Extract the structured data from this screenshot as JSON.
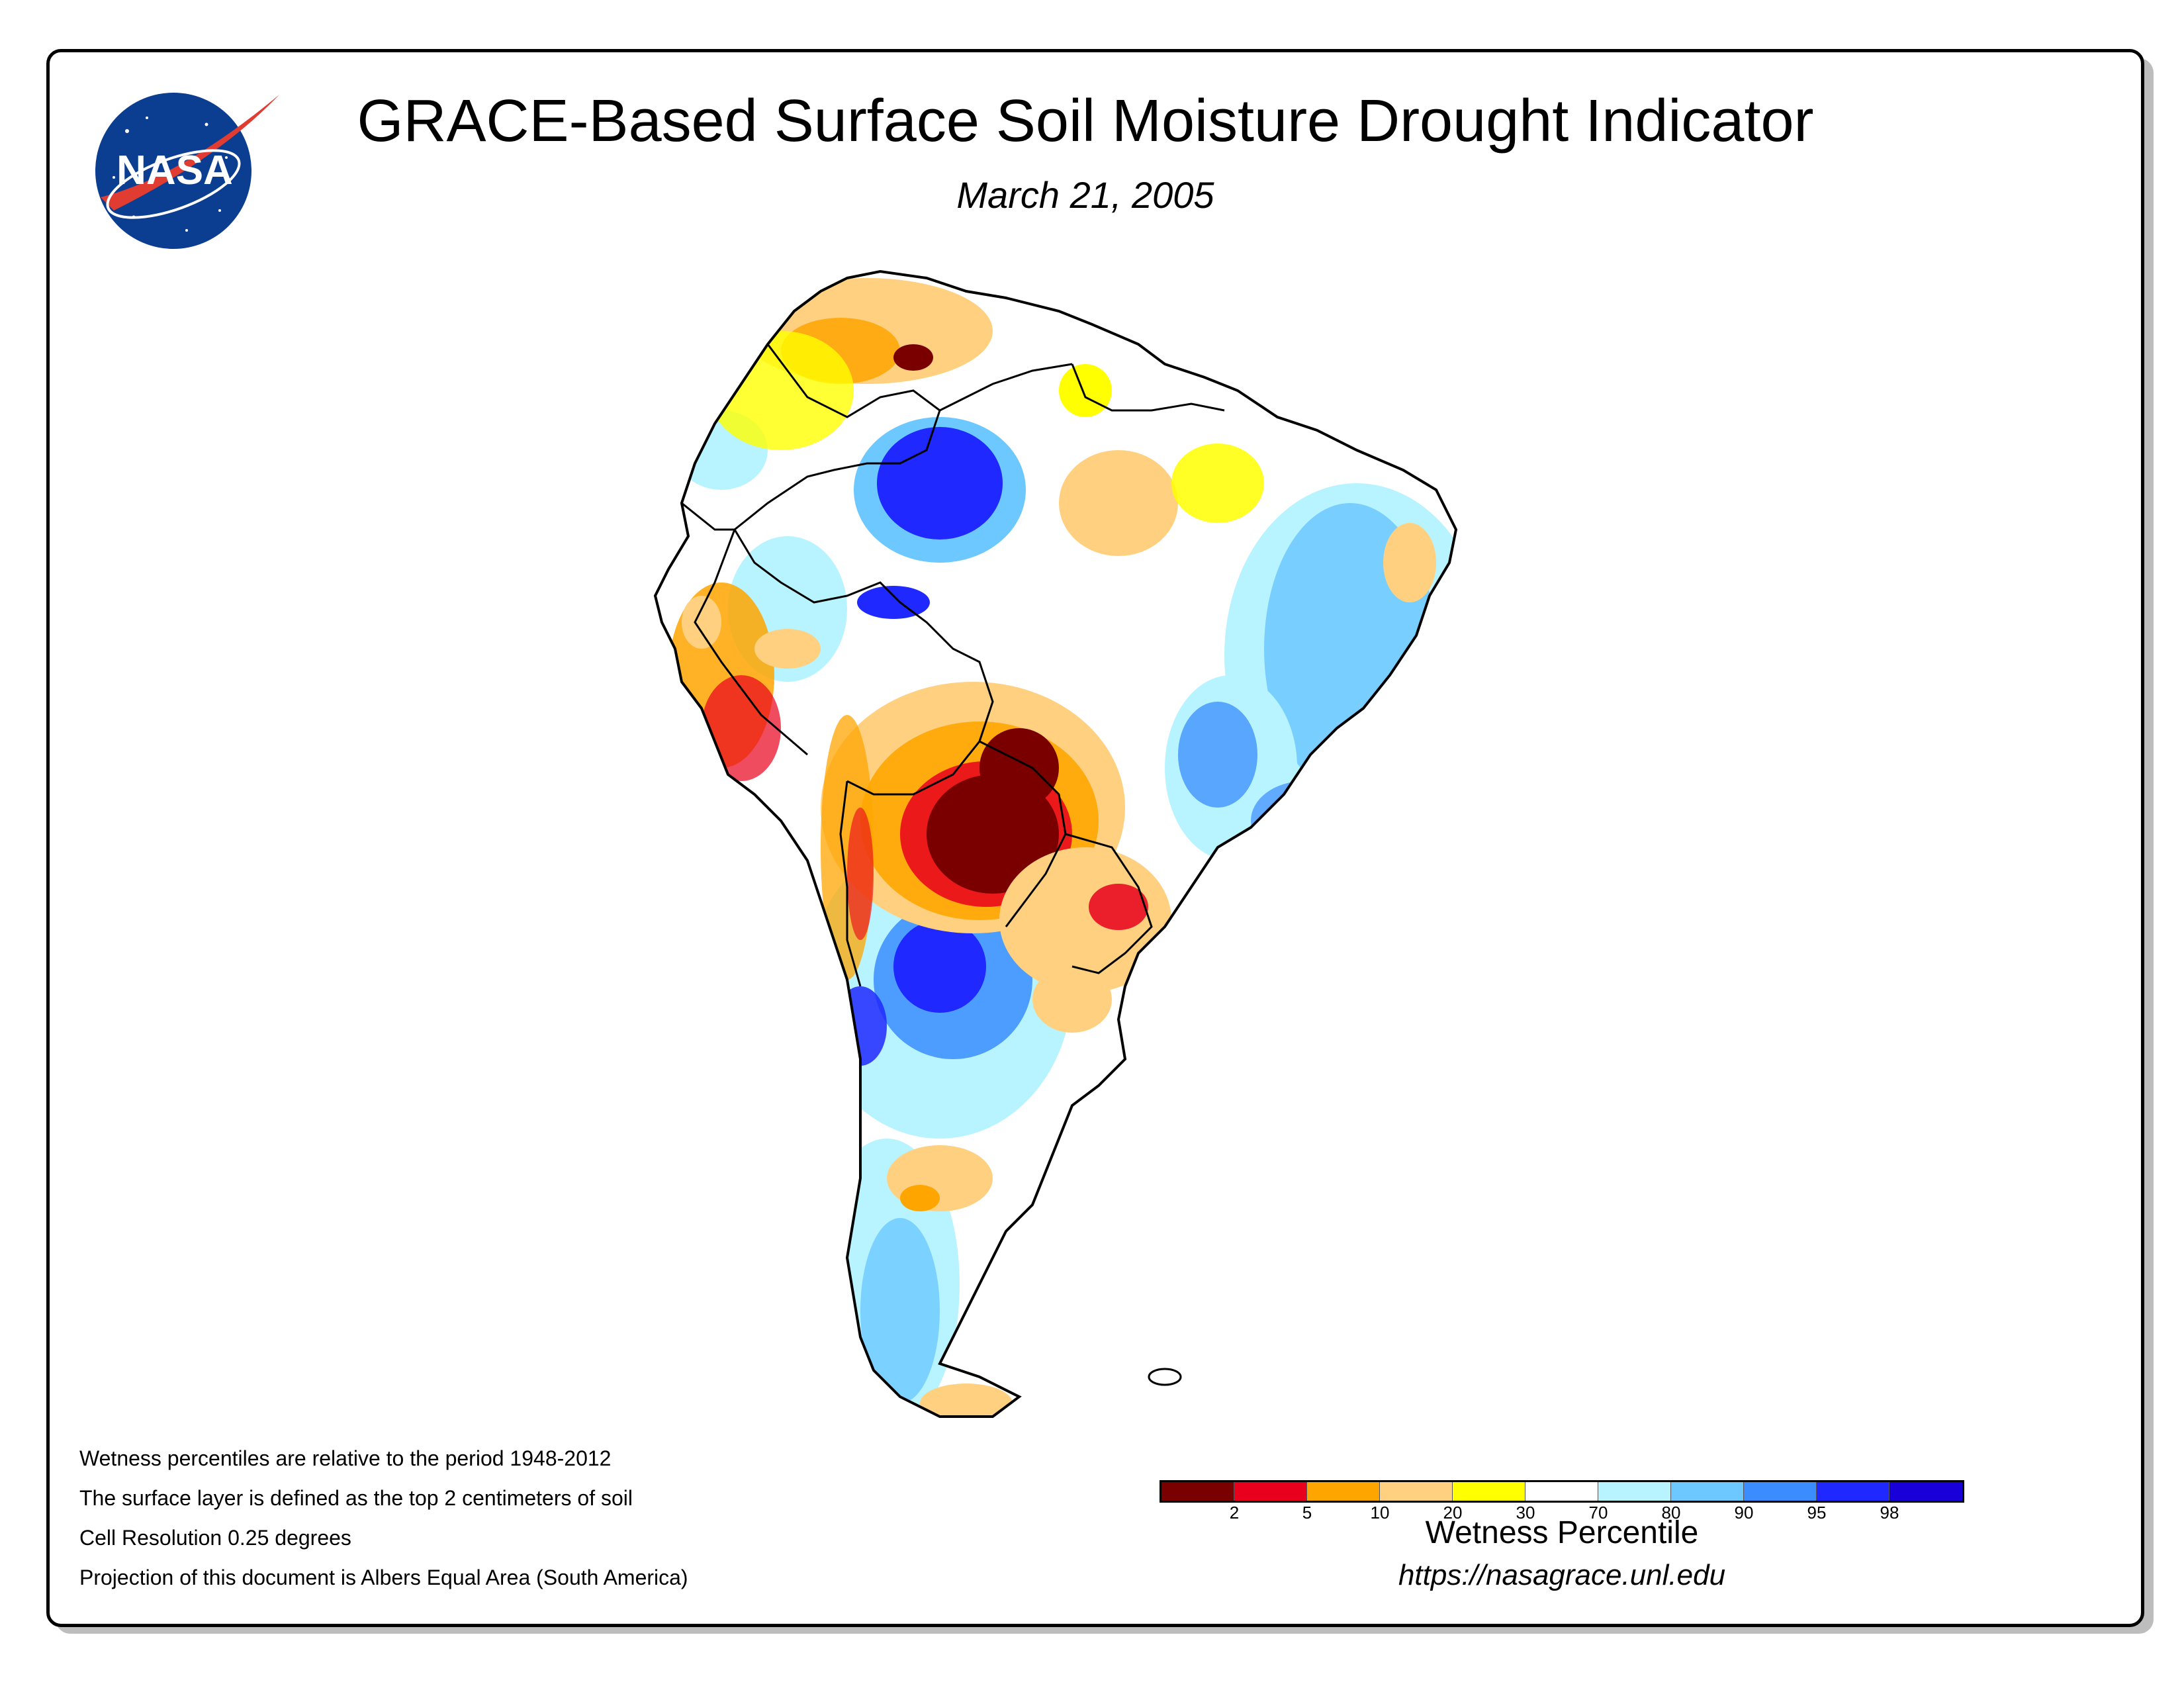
{
  "header": {
    "title": "GRACE-Based Surface Soil Moisture Drought Indicator",
    "date": "March 21, 2005"
  },
  "logo": {
    "text": "NASA",
    "icon": "nasa-meatball-logo"
  },
  "notes": [
    "Wetness percentiles are relative to the period 1948-2012",
    "The surface layer is defined as the top 2 centimeters of soil",
    "Cell Resolution 0.25 degrees",
    "Projection of this document is Albers Equal Area (South America)"
  ],
  "legend": {
    "title": "Wetness Percentile",
    "colors": [
      "#7a0000",
      "#e8001c",
      "#ffa500",
      "#ffd080",
      "#ffff00",
      "#ffffff",
      "#b8f4ff",
      "#6cc8ff",
      "#3a8cff",
      "#1e28ff",
      "#1a00d8"
    ],
    "ticks": [
      "2",
      "5",
      "10",
      "20",
      "30",
      "70",
      "80",
      "90",
      "95",
      "98"
    ]
  },
  "source_url": "https://nasagrace.unl.edu",
  "map": {
    "region": "South America",
    "colors": {
      "outline": "#000000",
      "dry_extreme": "#7a0000",
      "dry_severe": "#e8001c",
      "dry_moderate": "#ffa500",
      "dry_mild": "#ffd080",
      "abnormally_dry": "#ffff00",
      "normal": "#ffffff",
      "wet_mild": "#b8f4ff",
      "wet_moderate": "#6cc8ff",
      "wet_high": "#3a8cff",
      "wet_very_high": "#1e28ff",
      "wet_extreme": "#1a00d8"
    }
  }
}
